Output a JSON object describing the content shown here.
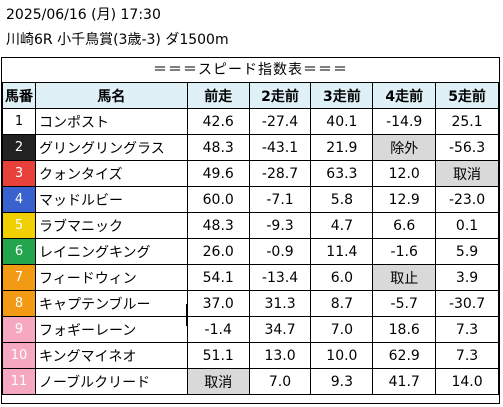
{
  "header": {
    "date_line": "2025/06/16 (月) 17:30",
    "race_line": "川崎6R 小千鳥賞(3歳-3) ダ1500m"
  },
  "table_title": "＝＝＝スピード指数表＝＝＝",
  "columns": [
    "馬番",
    "馬名",
    "前走",
    "2走前",
    "3走前",
    "4走前",
    "5走前"
  ],
  "waku_colors": {
    "1": {
      "bg": "#ffffff",
      "fg": "#000000"
    },
    "2": {
      "bg": "#222222",
      "fg": "#ffffff"
    },
    "3": {
      "bg": "#e8403a",
      "fg": "#ffffff"
    },
    "4": {
      "bg": "#3a62cf",
      "fg": "#ffffff"
    },
    "5": {
      "bg": "#f0d000",
      "fg": "#ffffff"
    },
    "6": {
      "bg": "#22a54c",
      "fg": "#ffffff"
    },
    "7": {
      "bg": "#f29a14",
      "fg": "#ffffff"
    },
    "8": {
      "bg": "#f5a8c0",
      "fg": "#ffffff"
    }
  },
  "rows": [
    {
      "no": "1",
      "waku": 1,
      "name": "コンポスト",
      "v": [
        "42.6",
        "-27.4",
        "40.1",
        "-14.9",
        "25.1"
      ],
      "gray": []
    },
    {
      "no": "2",
      "waku": 2,
      "name": "グリングリングラス",
      "v": [
        "48.3",
        "-43.1",
        "21.9",
        "除外",
        "-56.3"
      ],
      "gray": [
        3
      ]
    },
    {
      "no": "3",
      "waku": 3,
      "name": "クォンタイズ",
      "v": [
        "49.6",
        "-28.7",
        "63.3",
        "12.0",
        "取消"
      ],
      "gray": [
        4
      ]
    },
    {
      "no": "4",
      "waku": 4,
      "name": "マッドルビー",
      "v": [
        "60.0",
        "-7.1",
        "5.8",
        "12.9",
        "-23.0"
      ],
      "gray": []
    },
    {
      "no": "5",
      "waku": 5,
      "name": "ラブマニック",
      "v": [
        "48.3",
        "-9.3",
        "4.7",
        "6.6",
        "0.1"
      ],
      "gray": []
    },
    {
      "no": "6",
      "waku": 6,
      "name": "レイニングキング",
      "v": [
        "26.0",
        "-0.9",
        "11.4",
        "-1.6",
        "5.9"
      ],
      "gray": []
    },
    {
      "no": "7",
      "waku": 7,
      "name": "フィードウィン",
      "v": [
        "54.1",
        "-13.4",
        "6.0",
        "取止",
        "3.9"
      ],
      "gray": [
        3
      ]
    },
    {
      "no": "8",
      "waku": 7,
      "name": "キャプテンブルー",
      "v": [
        "37.0",
        "31.3",
        "8.7",
        "-5.7",
        "-30.7"
      ],
      "gray": []
    },
    {
      "no": "9",
      "waku": 8,
      "name": "フォギーレーン",
      "v": [
        "-1.4",
        "34.7",
        "7.0",
        "18.6",
        "7.3"
      ],
      "gray": []
    },
    {
      "no": "10",
      "waku": 8,
      "name": "キングマイネオ",
      "v": [
        "51.1",
        "13.0",
        "10.0",
        "62.9",
        "7.3"
      ],
      "gray": []
    },
    {
      "no": "11",
      "waku": 8,
      "name": "ノーブルクリード",
      "v": [
        "取消",
        "7.0",
        "9.3",
        "41.7",
        "14.0"
      ],
      "gray": [
        0
      ]
    }
  ]
}
